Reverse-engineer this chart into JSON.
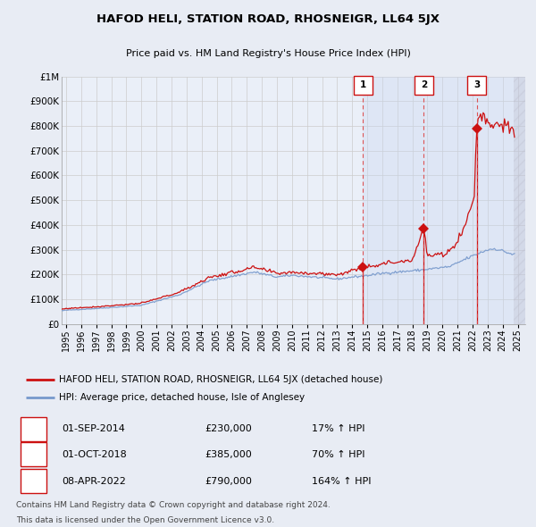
{
  "title": "HAFOD HELI, STATION ROAD, RHOSNEIGR, LL64 5JX",
  "subtitle": "Price paid vs. HM Land Registry's House Price Index (HPI)",
  "legend_line1": "HAFOD HELI, STATION ROAD, RHOSNEIGR, LL64 5JX (detached house)",
  "legend_line2": "HPI: Average price, detached house, Isle of Anglesey",
  "footnote1": "Contains HM Land Registry data © Crown copyright and database right 2024.",
  "footnote2": "This data is licensed under the Open Government Licence v3.0.",
  "transactions": [
    {
      "num": 1,
      "date": "01-SEP-2014",
      "price": "£230,000",
      "pct": "17% ↑ HPI"
    },
    {
      "num": 2,
      "date": "01-OCT-2018",
      "price": "£385,000",
      "pct": "70% ↑ HPI"
    },
    {
      "num": 3,
      "date": "08-APR-2022",
      "price": "£790,000",
      "pct": "164% ↑ HPI"
    }
  ],
  "transaction_dates_decimal": [
    2014.708,
    2018.75,
    2022.274
  ],
  "transaction_prices": [
    230000,
    385000,
    790000
  ],
  "hpi_color": "#7799cc",
  "property_color": "#cc1111",
  "background_color": "#e8ecf4",
  "plot_bg_color": "#eaeff8",
  "grid_color": "#cccccc",
  "vline_color": "#dd4444",
  "marker_color": "#cc1111",
  "shade_color": "#c8d8f0",
  "ylim": [
    0,
    1000000
  ],
  "xlim_start": 1994.7,
  "xlim_end": 2025.5,
  "yticks": [
    0,
    100000,
    200000,
    300000,
    400000,
    500000,
    600000,
    700000,
    800000,
    900000,
    1000000
  ],
  "ytick_labels": [
    "£0",
    "£100K",
    "£200K",
    "£300K",
    "£400K",
    "£500K",
    "£600K",
    "£700K",
    "£800K",
    "£900K",
    "£1M"
  ],
  "xtick_years": [
    1995,
    1996,
    1997,
    1998,
    1999,
    2000,
    2001,
    2002,
    2003,
    2004,
    2005,
    2006,
    2007,
    2008,
    2009,
    2010,
    2011,
    2012,
    2013,
    2014,
    2015,
    2016,
    2017,
    2018,
    2019,
    2020,
    2021,
    2022,
    2023,
    2024,
    2025
  ],
  "data_end_year": 2024.75
}
